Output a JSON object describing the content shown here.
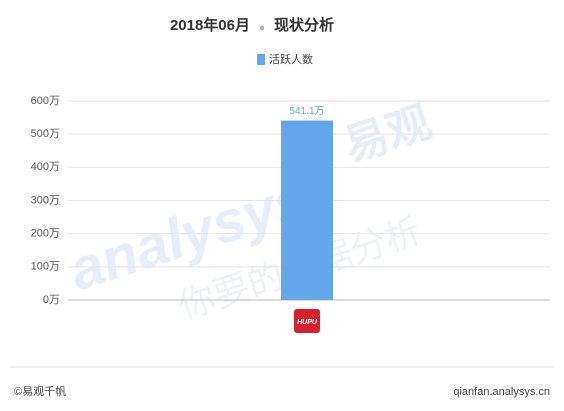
{
  "chart_data": {
    "type": "bar",
    "title": "2018年06月",
    "subtitle": "现状分析",
    "legend": [
      "活跃人数"
    ],
    "categories": [
      "HUPU"
    ],
    "values": [
      541.1
    ],
    "value_labels": [
      "541.1万"
    ],
    "color": "#64a6ea",
    "ylim": [
      0,
      600
    ],
    "yticks": [
      {
        "value": 0,
        "label": "0万"
      },
      {
        "value": 100,
        "label": "100万"
      },
      {
        "value": 200,
        "label": "200万"
      },
      {
        "value": 300,
        "label": "300万"
      },
      {
        "value": 400,
        "label": "400万"
      },
      {
        "value": 500,
        "label": "500万"
      },
      {
        "value": 600,
        "label": "600万"
      }
    ],
    "grid": true,
    "watermark": [
      "analysys",
      "易观",
      "你要的数据分析"
    ],
    "footer": {
      "left": "©易观千帆",
      "right": "qianfan.analysys.cn"
    }
  }
}
